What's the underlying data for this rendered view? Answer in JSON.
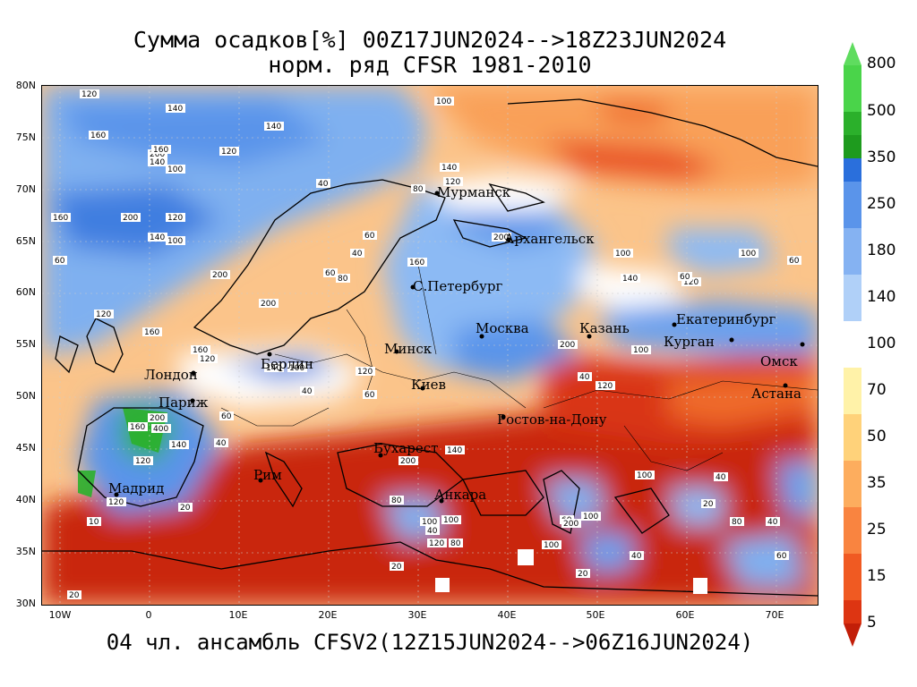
{
  "title": {
    "line1": "Сумма осадков[%] 00Z17JUN2024-->18Z23JUN2024",
    "line2": "норм. ряд CFSR 1981-2010"
  },
  "footer": "04 чл. ансамбль CFSV2(12Z15JUN2024-->06Z16JUN2024)",
  "map": {
    "lat_labels": [
      "80N",
      "75N",
      "70N",
      "65N",
      "60N",
      "55N",
      "50N",
      "45N",
      "40N",
      "35N",
      "30N"
    ],
    "lon_labels": [
      "10W",
      "0",
      "10E",
      "20E",
      "30E",
      "40E",
      "50E",
      "60E",
      "70E"
    ],
    "cities": [
      {
        "name": "Мурманск"
      },
      {
        "name": "Архангельск"
      },
      {
        "name": "С.Петербург"
      },
      {
        "name": "Москва"
      },
      {
        "name": "Казань"
      },
      {
        "name": "Екатеринбург"
      },
      {
        "name": "Курган"
      },
      {
        "name": "Омск"
      },
      {
        "name": "Астана"
      },
      {
        "name": "Минск"
      },
      {
        "name": "Берлин"
      },
      {
        "name": "Лондон"
      },
      {
        "name": "Париж"
      },
      {
        "name": "Киев"
      },
      {
        "name": "Ростов-на-Дону"
      },
      {
        "name": "Бухарест"
      },
      {
        "name": "Рим"
      },
      {
        "name": "Мадрид"
      },
      {
        "name": "Анкара"
      }
    ],
    "contour_values": [
      "60",
      "120",
      "140",
      "140",
      "160",
      "200",
      "160",
      "120",
      "140",
      "100",
      "100",
      "160",
      "200",
      "120",
      "140",
      "100",
      "40",
      "80",
      "60",
      "80",
      "60",
      "40",
      "100",
      "120",
      "160",
      "200",
      "200",
      "160",
      "120",
      "140",
      "100",
      "140",
      "120",
      "200",
      "160",
      "200",
      "140",
      "120",
      "100",
      "100",
      "60",
      "40",
      "60",
      "160",
      "120",
      "140",
      "40",
      "120",
      "60",
      "120",
      "100",
      "200",
      "400",
      "200",
      "40",
      "80",
      "20",
      "40",
      "60",
      "40",
      "80",
      "40",
      "20",
      "40",
      "140",
      "100",
      "20",
      "60",
      "100",
      "120",
      "20",
      "10",
      "20",
      "100",
      "120",
      "80",
      "200",
      "100",
      "60"
    ]
  },
  "colorbar": {
    "labels": [
      "800",
      "500",
      "350",
      "250",
      "180",
      "140",
      "100",
      "70",
      "50",
      "35",
      "25",
      "15",
      "5"
    ],
    "colors": [
      "#4ad44a",
      "#2bb02b",
      "#1e9b1e",
      "#2a6fdc",
      "#5a94ea",
      "#85b2f2",
      "#b0d0f8",
      "#ffffff",
      "#fff2a8",
      "#ffd27a",
      "#fdad5e",
      "#f98440",
      "#f05a22",
      "#dd3512",
      "#c21e08"
    ]
  }
}
